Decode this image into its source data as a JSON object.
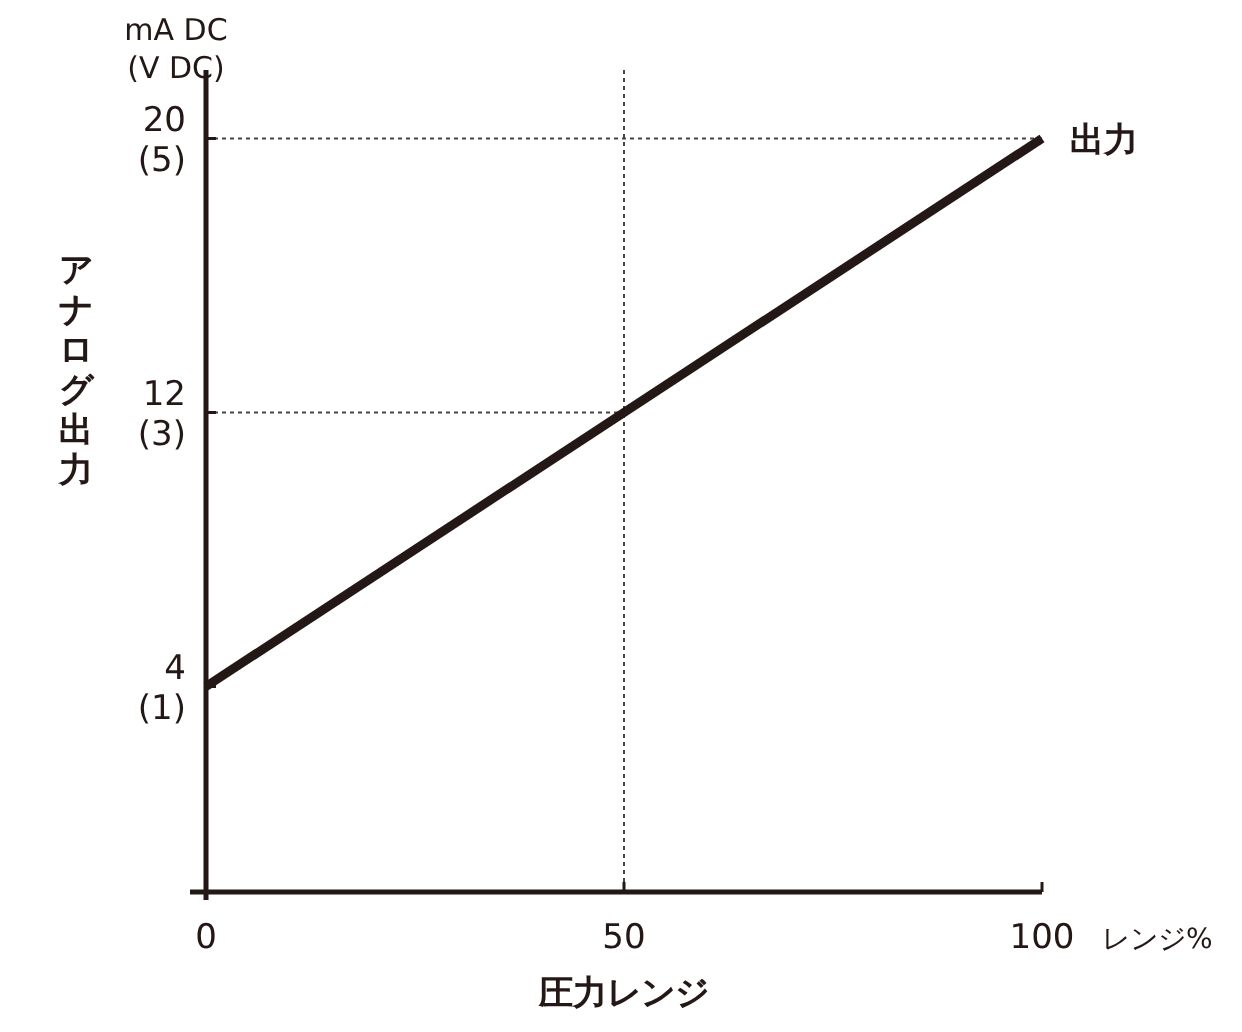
{
  "chart_data": {
    "type": "line",
    "xlabel": "圧力レンジ",
    "y2label": "アナログ出力",
    "x": [
      0,
      100
    ],
    "series": [
      {
        "name": "出力",
        "color": "#231815",
        "values": [
          4,
          20
        ]
      }
    ],
    "xlim": [
      0,
      100
    ],
    "ylim": [
      -2,
      22
    ],
    "xticks": [
      0,
      50,
      100
    ],
    "yticks": [
      4,
      12,
      20
    ],
    "y2lim": [
      -0.5,
      5.5
    ],
    "y2ticks": [
      {
        "value": 1,
        "label": "(1)"
      },
      {
        "value": 3,
        "label": "(3)"
      },
      {
        "value": 5,
        "label": "(5)"
      }
    ],
    "ref_lines": [
      {
        "axis": "x",
        "value": 50,
        "color": "#444444",
        "line_style": "dotted"
      },
      {
        "axis": "y",
        "value": 12,
        "color": "#444444",
        "line_style": "dotted"
      },
      {
        "axis": "y",
        "value": 20,
        "color": "#444444",
        "line_style": "dotted"
      }
    ],
    "annotations": [
      "mA DC\n(V DC)",
      "レンジ%"
    ],
    "marker": "none",
    "line_style": "solid"
  }
}
